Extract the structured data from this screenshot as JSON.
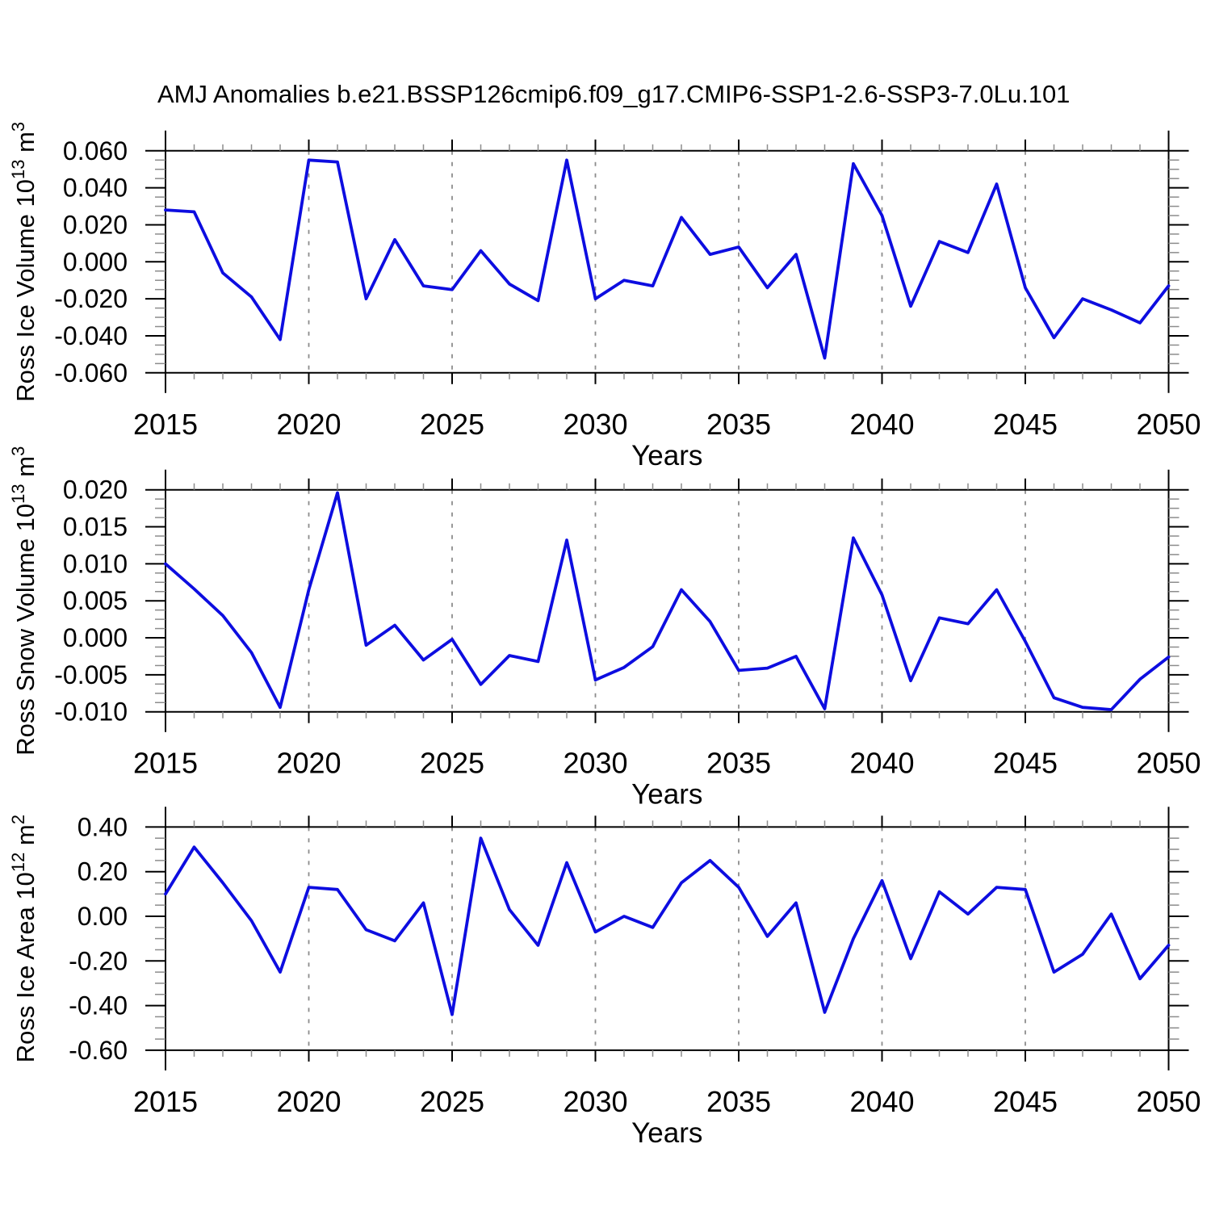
{
  "figure": {
    "title": "AMJ Anomalies b.e21.BSSP126cmip6.f09_g17.CMIP6-SSP1-2.6-SSP3-7.0Lu.101",
    "line_color": "#0d0de0",
    "axis_color": "#000000",
    "minor_tick_color": "#8c8c8c",
    "grid_color": "#8c8c8c",
    "background_color": "#ffffff"
  },
  "chart_data": [
    {
      "type": "line",
      "panel": "ross-ice-volume",
      "ylabel_text": "Ross Ice Volume 10^13 m^3",
      "ylabel_parts": [
        {
          "text": "Ross Ice Volume 10",
          "sup": false
        },
        {
          "text": "13",
          "sup": true
        },
        {
          "text": " m",
          "sup": false
        },
        {
          "text": "3",
          "sup": true
        }
      ],
      "xlabel": "Years",
      "x": [
        2015,
        2016,
        2017,
        2018,
        2019,
        2020,
        2021,
        2022,
        2023,
        2024,
        2025,
        2026,
        2027,
        2028,
        2029,
        2030,
        2031,
        2032,
        2033,
        2034,
        2035,
        2036,
        2037,
        2038,
        2039,
        2040,
        2041,
        2042,
        2043,
        2044,
        2045,
        2046,
        2047,
        2048,
        2049,
        2050
      ],
      "values": [
        0.028,
        0.027,
        -0.006,
        -0.019,
        -0.042,
        0.055,
        0.054,
        -0.02,
        0.012,
        -0.013,
        -0.015,
        0.006,
        -0.012,
        -0.021,
        0.055,
        -0.02,
        -0.01,
        -0.013,
        0.024,
        0.004,
        0.008,
        -0.014,
        0.004,
        -0.052,
        0.053,
        0.025,
        -0.024,
        0.011,
        0.005,
        0.042,
        -0.014,
        -0.041,
        -0.02,
        -0.026,
        -0.033,
        -0.013
      ],
      "ylim": [
        -0.06,
        0.06
      ],
      "ytick_values": [
        0.06,
        0.04,
        0.02,
        0.0,
        -0.02,
        -0.04,
        -0.06
      ],
      "ytick_labels": [
        "0.060",
        "0.040",
        "0.020",
        "0.000",
        "-0.020",
        "-0.040",
        "-0.060"
      ],
      "y_minor_per_major": 4,
      "xlim": [
        2015,
        2050
      ],
      "xtick_values": [
        2015,
        2020,
        2025,
        2030,
        2035,
        2040,
        2045,
        2050
      ],
      "xtick_labels": [
        "2015",
        "2020",
        "2025",
        "2030",
        "2035",
        "2040",
        "2045",
        "2050"
      ],
      "x_minor_step": 1,
      "grid_x": [
        2020,
        2025,
        2030,
        2035,
        2040,
        2045
      ],
      "grid_style": "vertical-dashed",
      "legend": "none"
    },
    {
      "type": "line",
      "panel": "ross-snow-volume",
      "ylabel_text": "Ross Snow Volume 10^13 m^3",
      "ylabel_parts": [
        {
          "text": "Ross Snow Volume 10",
          "sup": false
        },
        {
          "text": "13",
          "sup": true
        },
        {
          "text": " m",
          "sup": false
        },
        {
          "text": "3",
          "sup": true
        }
      ],
      "xlabel": "Years",
      "x": [
        2015,
        2016,
        2017,
        2018,
        2019,
        2020,
        2021,
        2022,
        2023,
        2024,
        2025,
        2026,
        2027,
        2028,
        2029,
        2030,
        2031,
        2032,
        2033,
        2034,
        2035,
        2036,
        2037,
        2038,
        2039,
        2040,
        2041,
        2042,
        2043,
        2044,
        2045,
        2046,
        2047,
        2048,
        2049,
        2050
      ],
      "values": [
        0.01,
        0.0066,
        0.003,
        -0.002,
        -0.0094,
        0.0065,
        0.0196,
        -0.001,
        0.0017,
        -0.003,
        -0.0002,
        -0.0063,
        -0.0024,
        -0.0032,
        0.0132,
        -0.0057,
        -0.004,
        -0.0012,
        0.0065,
        0.0022,
        -0.0044,
        -0.0041,
        -0.0025,
        -0.0096,
        0.0135,
        0.0058,
        -0.0058,
        0.0027,
        0.0019,
        0.0065,
        -0.0005,
        -0.0081,
        -0.0094,
        -0.0097,
        -0.0056,
        -0.0026
      ],
      "ylim": [
        -0.01,
        0.02
      ],
      "ytick_values": [
        0.02,
        0.015,
        0.01,
        0.005,
        0.0,
        -0.005,
        -0.01
      ],
      "ytick_labels": [
        "0.020",
        "0.015",
        "0.010",
        "0.005",
        "0.000",
        "-0.005",
        "-0.010"
      ],
      "y_minor_per_major": 4,
      "xlim": [
        2015,
        2050
      ],
      "xtick_values": [
        2015,
        2020,
        2025,
        2030,
        2035,
        2040,
        2045,
        2050
      ],
      "xtick_labels": [
        "2015",
        "2020",
        "2025",
        "2030",
        "2035",
        "2040",
        "2045",
        "2050"
      ],
      "x_minor_step": 1,
      "grid_x": [
        2020,
        2025,
        2030,
        2035,
        2040,
        2045
      ],
      "grid_style": "vertical-dashed",
      "legend": "none"
    },
    {
      "type": "line",
      "panel": "ross-ice-area",
      "ylabel_text": "Ross Ice Area 10^12 m^2",
      "ylabel_parts": [
        {
          "text": "Ross Ice Area 10",
          "sup": false
        },
        {
          "text": "12",
          "sup": true
        },
        {
          "text": " m",
          "sup": false
        },
        {
          "text": "2",
          "sup": true
        }
      ],
      "xlabel": "Years",
      "x": [
        2015,
        2016,
        2017,
        2018,
        2019,
        2020,
        2021,
        2022,
        2023,
        2024,
        2025,
        2026,
        2027,
        2028,
        2029,
        2030,
        2031,
        2032,
        2033,
        2034,
        2035,
        2036,
        2037,
        2038,
        2039,
        2040,
        2041,
        2042,
        2043,
        2044,
        2045,
        2046,
        2047,
        2048,
        2049,
        2050
      ],
      "values": [
        0.1,
        0.31,
        0.15,
        -0.02,
        -0.25,
        0.13,
        0.12,
        -0.06,
        -0.11,
        0.06,
        -0.44,
        0.35,
        0.03,
        -0.13,
        0.24,
        -0.07,
        0.0,
        -0.05,
        0.15,
        0.25,
        0.13,
        -0.09,
        0.06,
        -0.43,
        -0.1,
        0.16,
        -0.19,
        0.11,
        0.01,
        0.13,
        0.12,
        -0.25,
        -0.17,
        0.01,
        -0.28,
        -0.13
      ],
      "ylim": [
        -0.6,
        0.4
      ],
      "ytick_values": [
        0.4,
        0.2,
        0.0,
        -0.2,
        -0.4,
        -0.6
      ],
      "ytick_labels": [
        "0.40",
        "0.20",
        "0.00",
        "-0.20",
        "-0.40",
        "-0.60"
      ],
      "y_minor_per_major": 4,
      "xlim": [
        2015,
        2050
      ],
      "xtick_values": [
        2015,
        2020,
        2025,
        2030,
        2035,
        2040,
        2045,
        2050
      ],
      "xtick_labels": [
        "2015",
        "2020",
        "2025",
        "2030",
        "2035",
        "2040",
        "2045",
        "2050"
      ],
      "x_minor_step": 1,
      "grid_x": [
        2020,
        2025,
        2030,
        2035,
        2040,
        2045
      ],
      "grid_style": "vertical-dashed",
      "legend": "none"
    }
  ]
}
